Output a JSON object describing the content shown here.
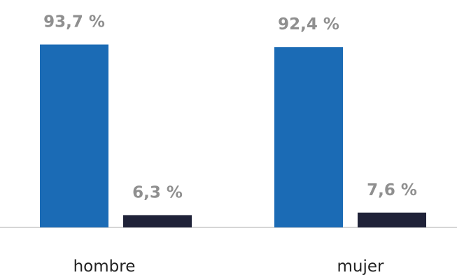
{
  "chart_data": {
    "type": "bar",
    "categories": [
      "hombre",
      "mujer"
    ],
    "series": [
      {
        "values": [
          93.7,
          92.4
        ],
        "color": "#1b6bb5"
      },
      {
        "values": [
          6.3,
          7.6
        ],
        "color": "#1f2238"
      }
    ],
    "data_labels": [
      [
        "93,7 %",
        "92,4 %"
      ],
      [
        "6,3 %",
        "7,6 %"
      ]
    ],
    "ylim": [
      0,
      100
    ],
    "grid": false,
    "legend": "none",
    "axis_line_color": "#c8c8c8",
    "label_color": "#8f8f8f"
  }
}
